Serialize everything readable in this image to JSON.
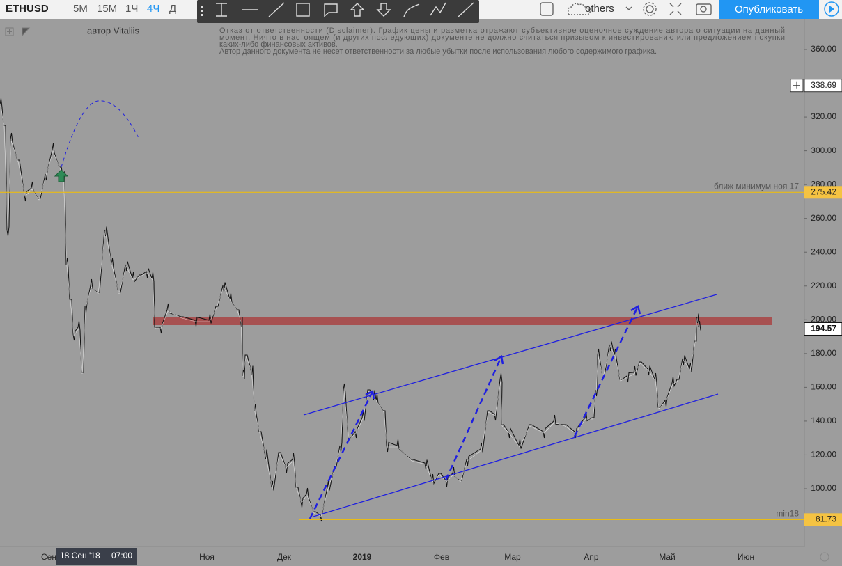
{
  "toolbar": {
    "symbol": "ETHUSD",
    "intervals": [
      "5М",
      "15М",
      "1Ч",
      "4Ч",
      "Д"
    ],
    "active_interval": 3,
    "layout_name": "others",
    "publish": "Опубликовать"
  },
  "author": "автор Vitaliis",
  "disclaimer": [
    "Отказ от ответственности (Disclaimer). График цены и разметка отражают субъективное оценочное суждение автора о ситуации на данный",
    "момент. Ничто в настоящем (и других последующих) документе не должно считаться призывом к инвестированию или предложением покупки",
    "каких-либо финансовых активов.",
    "Автор данного документа не несет ответственности за любые убытки после использования любого содержимого графика."
  ],
  "price_axis": {
    "ticks": [
      {
        "value": 360,
        "label": "360.00"
      },
      {
        "value": 320,
        "label": "320.00"
      },
      {
        "value": 300,
        "label": "300.00"
      },
      {
        "value": 280,
        "label": "280.00"
      },
      {
        "value": 260,
        "label": "260.00"
      },
      {
        "value": 240,
        "label": "240.00"
      },
      {
        "value": 220,
        "label": "220.00"
      },
      {
        "value": 200,
        "label": "200.00"
      },
      {
        "value": 180,
        "label": "180.00"
      },
      {
        "value": 160,
        "label": "160.00"
      },
      {
        "value": 140,
        "label": "140.00"
      },
      {
        "value": 120,
        "label": "120.00"
      },
      {
        "value": 100,
        "label": "100.00"
      }
    ],
    "crosshair_price": 338.69,
    "last_price": 194.57
  },
  "levels": [
    {
      "value": 275.42,
      "note": "ближ минимум ноя 17"
    },
    {
      "value": 81.73,
      "note": "min18"
    }
  ],
  "time_axis": {
    "labels": [
      "Сен",
      "Ноя",
      "Дек",
      "2019",
      "Фев",
      "Мар",
      "Апр",
      "Май",
      "Июн"
    ],
    "crosshair_date": "18 Сен '18",
    "crosshair_time": "07:00"
  }
}
